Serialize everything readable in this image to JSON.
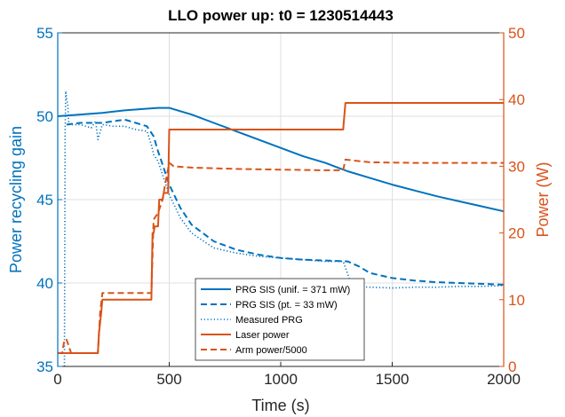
{
  "chart_data": {
    "type": "line",
    "title": "LLO power up: t0 = 1230514443",
    "xlabel": "Time (s)",
    "ylabel_left": "Power recycling gain",
    "ylabel_right": "Power (W)",
    "xlim": [
      0,
      2000
    ],
    "ylim_left": [
      35,
      55
    ],
    "ylim_right": [
      0,
      50
    ],
    "xticks": [
      "0",
      "500",
      "1000",
      "1500",
      "2000"
    ],
    "yticks_left": [
      "35",
      "40",
      "45",
      "50",
      "55"
    ],
    "yticks_right": [
      "0",
      "10",
      "20",
      "30",
      "40",
      "50"
    ],
    "grid": true,
    "legend_position": "lower-center",
    "colors": {
      "left_axis": "#0072BD",
      "right_axis": "#D95319",
      "axes": "#262626",
      "grid": "#dfdfdf"
    },
    "series": [
      {
        "name": "PRG SIS (unif. = 371 mW)",
        "axis": "left",
        "style": "solid",
        "color": "#0072BD",
        "x": [
          0,
          100,
          200,
          300,
          400,
          450,
          500,
          600,
          700,
          800,
          900,
          1000,
          1100,
          1200,
          1300,
          1400,
          1500,
          1600,
          1700,
          1800,
          1900,
          2000
        ],
        "y": [
          50.0,
          50.1,
          50.2,
          50.35,
          50.45,
          50.5,
          50.5,
          50.1,
          49.6,
          49.1,
          48.6,
          48.1,
          47.6,
          47.2,
          46.7,
          46.3,
          45.9,
          45.55,
          45.2,
          44.9,
          44.6,
          44.3
        ]
      },
      {
        "name": "PRG SIS (pt. = 33 mW)",
        "axis": "left",
        "style": "dashed",
        "color": "#0072BD",
        "x": [
          40,
          100,
          150,
          200,
          250,
          300,
          350,
          400,
          430,
          450,
          470,
          500,
          550,
          600,
          700,
          800,
          900,
          1000,
          1100,
          1200,
          1300,
          1350,
          1400,
          1500,
          1600,
          1700,
          1800,
          1900,
          2000
        ],
        "y": [
          49.5,
          49.6,
          49.6,
          49.6,
          49.7,
          49.8,
          49.6,
          49.4,
          48.8,
          47.9,
          47.1,
          45.9,
          44.5,
          43.5,
          42.5,
          42.0,
          41.7,
          41.5,
          41.4,
          41.35,
          41.3,
          41.0,
          40.6,
          40.3,
          40.15,
          40.05,
          40.0,
          39.95,
          39.9
        ]
      },
      {
        "name": "Measured PRG",
        "axis": "left",
        "style": "dotted",
        "color": "#0072BD",
        "x": [
          30,
          33,
          36,
          40,
          45,
          50,
          55,
          100,
          150,
          170,
          180,
          200,
          250,
          300,
          350,
          400,
          420,
          430,
          450,
          470,
          500,
          550,
          600,
          700,
          800,
          900,
          1000,
          1100,
          1200,
          1280,
          1320,
          1400,
          1500,
          1600,
          1700,
          1800,
          1900,
          2000
        ],
        "y": [
          35.0,
          49.0,
          51.5,
          51.0,
          50.7,
          49.5,
          49.5,
          49.5,
          49.3,
          49.7,
          48.6,
          49.5,
          49.4,
          49.4,
          49.2,
          49.1,
          48.3,
          47.7,
          47.3,
          46.5,
          45.3,
          43.9,
          43.0,
          42.1,
          41.8,
          41.6,
          41.5,
          41.4,
          41.3,
          41.3,
          39.8,
          39.75,
          39.7,
          39.75,
          39.75,
          39.8,
          39.8,
          39.85
        ]
      },
      {
        "name": "Laser power",
        "axis": "right",
        "style": "solid",
        "color": "#D95319",
        "x": [
          0,
          180,
          185,
          195,
          200,
          420,
          425,
          430,
          435,
          450,
          455,
          470,
          475,
          495,
          500,
          1280,
          1290,
          2000
        ],
        "y": [
          2,
          2,
          5,
          8,
          10,
          10,
          20,
          20,
          21,
          21,
          25,
          25,
          26,
          26,
          35.5,
          35.5,
          39.5,
          39.5
        ]
      },
      {
        "name": "Arm power/5000",
        "axis": "right",
        "style": "dashed",
        "color": "#D95319",
        "x": [
          0,
          20,
          30,
          40,
          50,
          60,
          100,
          180,
          190,
          200,
          420,
          430,
          450,
          470,
          480,
          500,
          520,
          600,
          800,
          1000,
          1200,
          1280,
          1290,
          1400,
          1600,
          1800,
          2000
        ],
        "y": [
          2,
          2,
          4,
          4,
          3,
          2,
          2,
          2,
          8,
          11,
          11,
          22,
          23,
          25,
          27,
          30.5,
          30,
          29.8,
          29.6,
          29.5,
          29.4,
          29.4,
          31,
          30.6,
          30.5,
          30.5,
          30.5
        ]
      }
    ]
  }
}
